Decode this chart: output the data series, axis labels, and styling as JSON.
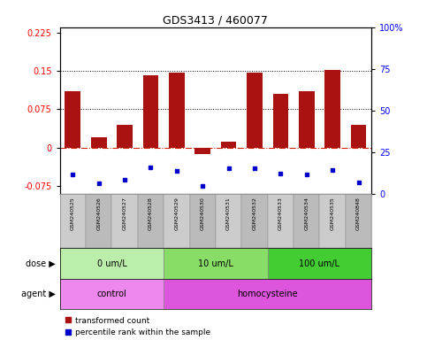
{
  "title": "GDS3413 / 460077",
  "samples": [
    "GSM240525",
    "GSM240526",
    "GSM240527",
    "GSM240528",
    "GSM240529",
    "GSM240530",
    "GSM240531",
    "GSM240532",
    "GSM240533",
    "GSM240534",
    "GSM240535",
    "GSM240848"
  ],
  "red_values": [
    0.11,
    0.02,
    0.045,
    0.142,
    0.146,
    -0.012,
    0.012,
    0.147,
    0.105,
    0.11,
    0.152,
    0.045
  ],
  "blue_values_left": [
    -0.052,
    -0.07,
    -0.063,
    -0.038,
    -0.045,
    -0.075,
    -0.04,
    -0.04,
    -0.05,
    -0.053,
    -0.044,
    -0.068
  ],
  "ylim_left": [
    -0.09,
    0.235
  ],
  "ylim_right": [
    0,
    100
  ],
  "yticks_left": [
    -0.075,
    0,
    0.075,
    0.15,
    0.225
  ],
  "yticks_right": [
    0,
    25,
    50,
    75,
    100
  ],
  "ytick_labels_left": [
    "-0.075",
    "0",
    "0.075",
    "0.15",
    "0.225"
  ],
  "ytick_labels_right": [
    "0",
    "25",
    "50",
    "75",
    "100%"
  ],
  "hlines": [
    0.075,
    0.15
  ],
  "dose_groups": [
    {
      "label": "0 um/L",
      "start": 0,
      "end": 4,
      "color": "#bbeeaa"
    },
    {
      "label": "10 um/L",
      "start": 4,
      "end": 8,
      "color": "#88dd66"
    },
    {
      "label": "100 um/L",
      "start": 8,
      "end": 12,
      "color": "#44cc33"
    }
  ],
  "agent_groups": [
    {
      "label": "control",
      "start": 0,
      "end": 4,
      "color": "#ee88ee"
    },
    {
      "label": "homocysteine",
      "start": 4,
      "end": 12,
      "color": "#dd55dd"
    }
  ],
  "bar_color": "#aa1111",
  "square_color": "#0000cc",
  "zero_line_color": "#cc2200",
  "grid_color": "#000000",
  "legend_red": "transformed count",
  "legend_blue": "percentile rank within the sample",
  "dose_label": "dose",
  "agent_label": "agent",
  "sample_box_color_even": "#cccccc",
  "sample_box_color_odd": "#bbbbbb"
}
